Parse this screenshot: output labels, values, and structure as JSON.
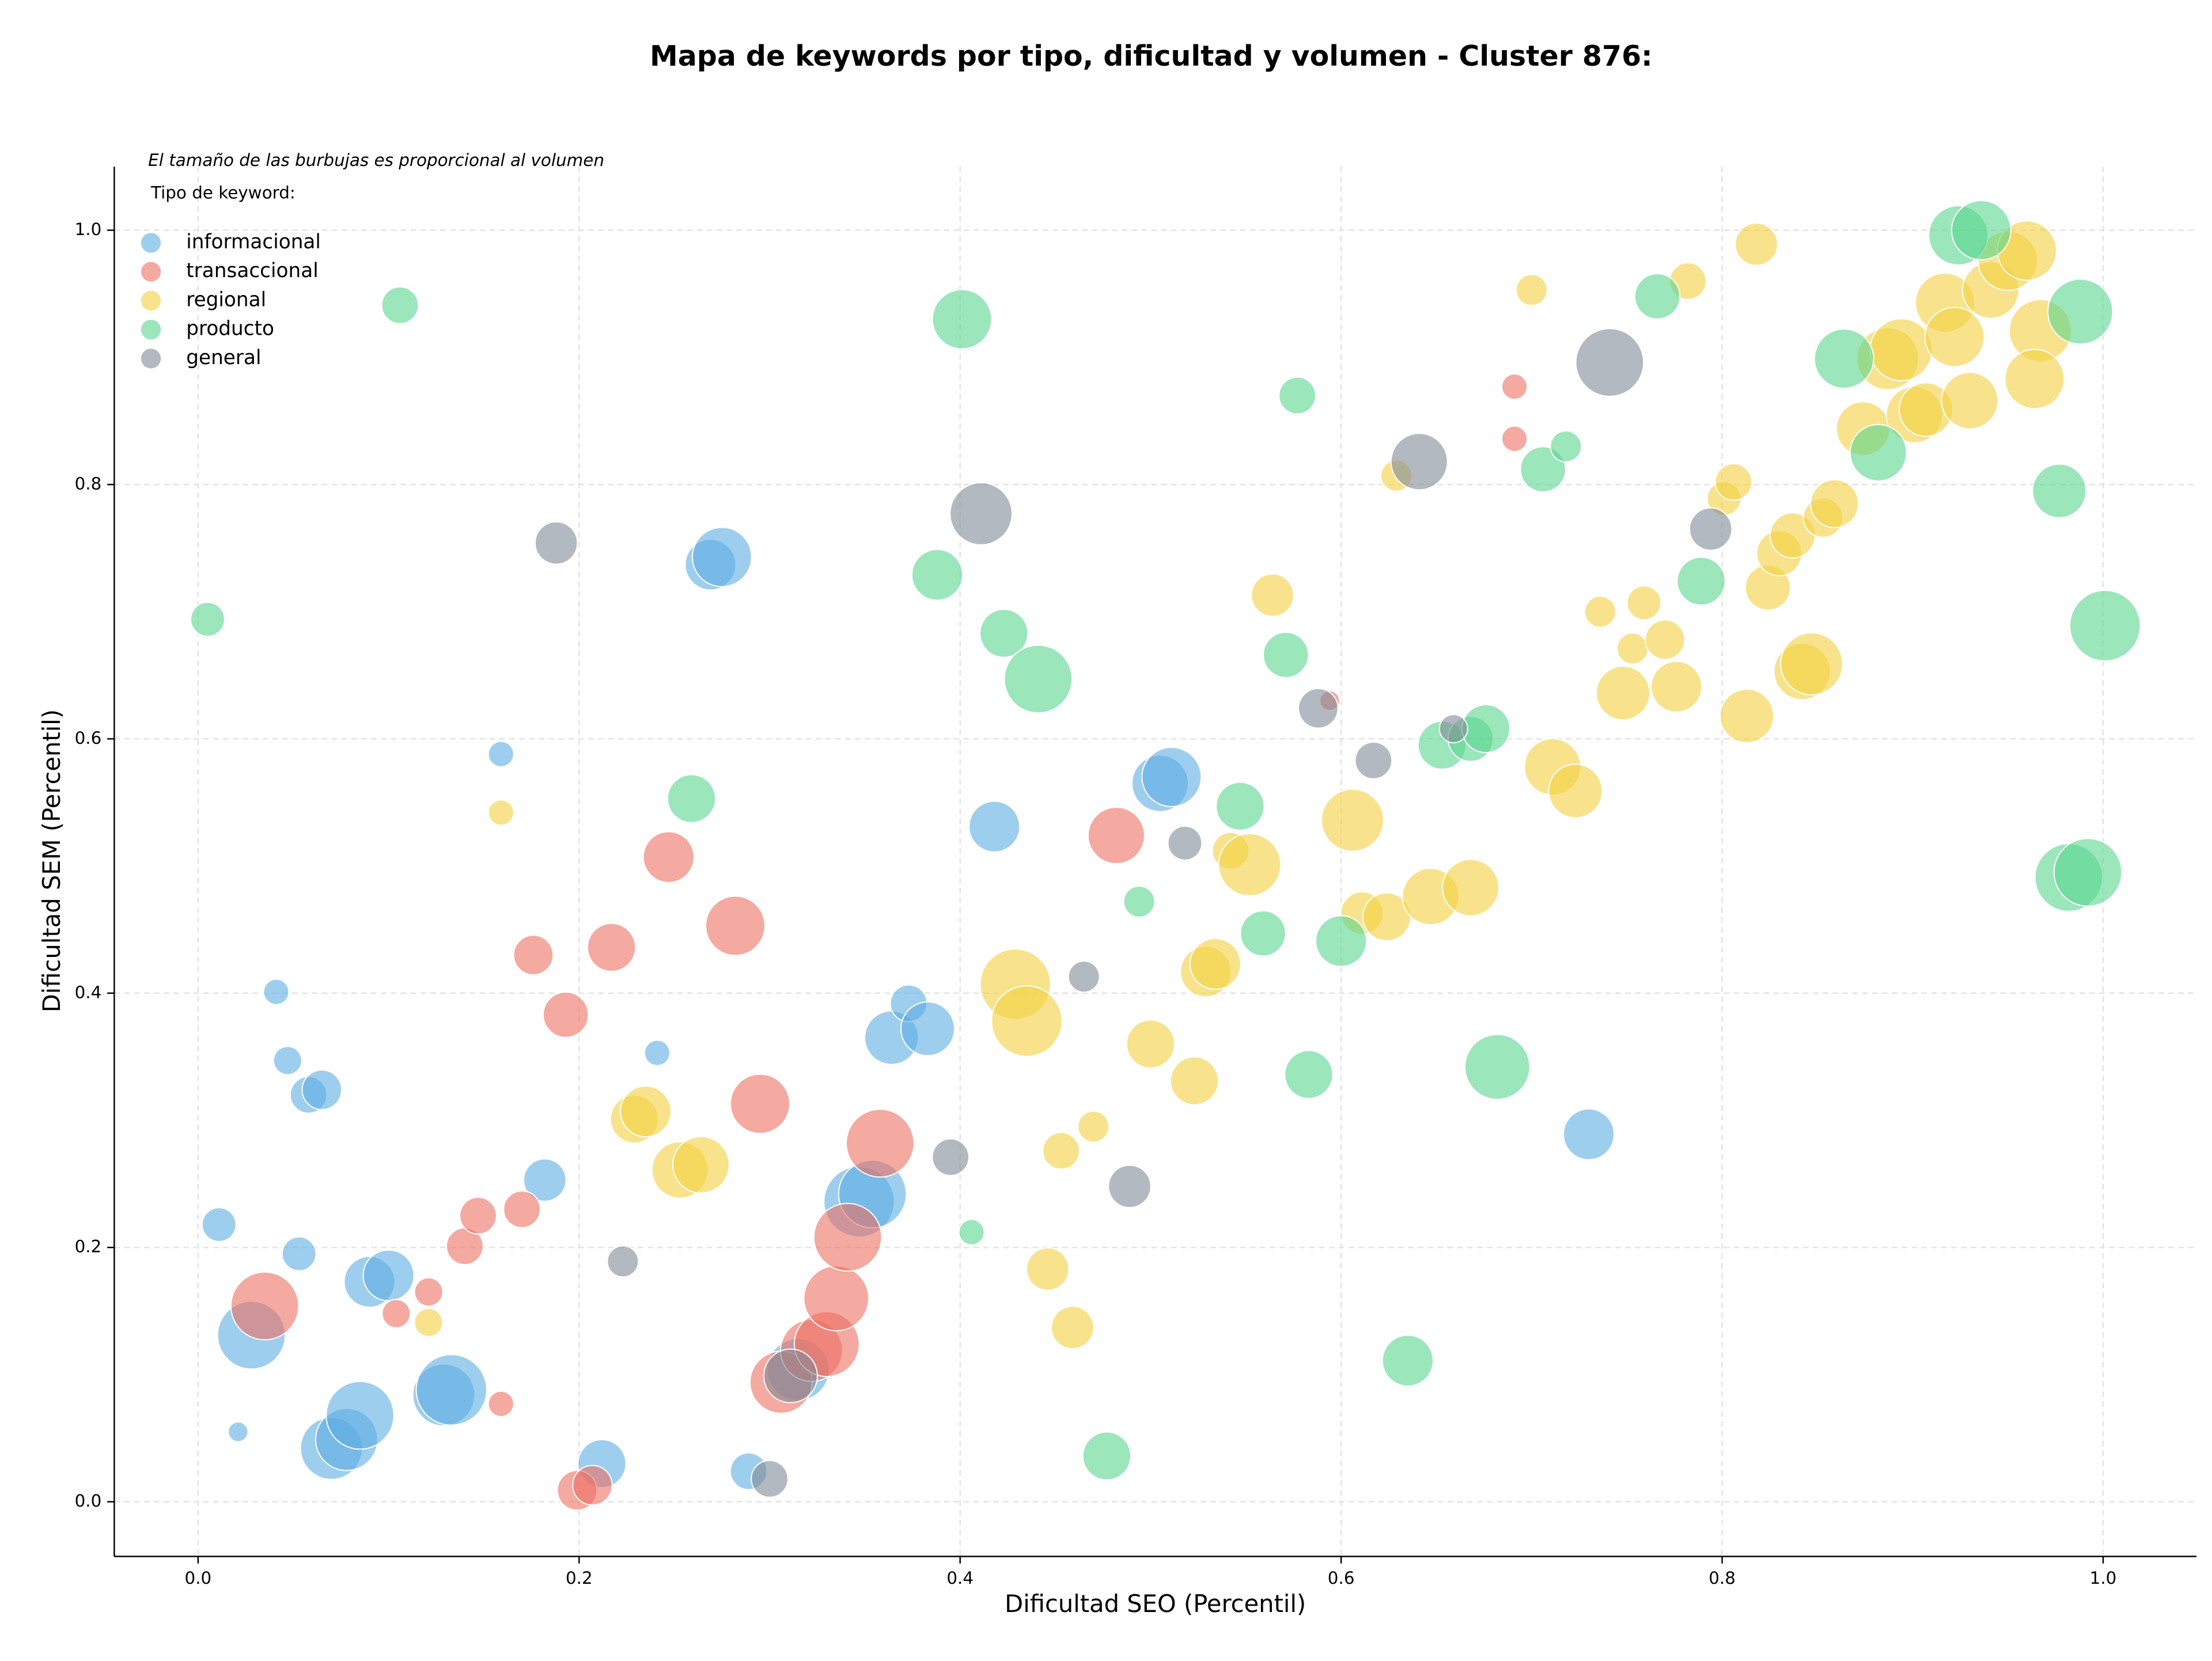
{
  "chart_data": {
    "type": "bubble",
    "title": "Mapa de keywords por tipo, dificultad y volumen - Cluster 876:",
    "annotation": "El tamaño de las burbujas es proporcional al volumen",
    "legend_title": "Tipo de keyword:",
    "xlabel": "Dificultad SEO (Percentil)",
    "ylabel": "Dificultad SEM (Percentil)",
    "xlim": [
      -0.044,
      1.049
    ],
    "ylim": [
      -0.043,
      1.05
    ],
    "xticks": [
      {
        "value": 0,
        "label": "0.0"
      },
      0.2,
      0.4,
      0.6,
      0.8,
      {
        "value": 1,
        "label": "1.0"
      }
    ],
    "yticks": [
      {
        "value": 0,
        "label": "0.0"
      },
      0.2,
      0.4,
      0.6,
      0.8,
      {
        "value": 1,
        "label": "1.0"
      }
    ],
    "grid": true,
    "legend": "upper left",
    "series": [
      {
        "name": "informacional",
        "color": "#5dade2",
        "x": [
          0.011,
          0.028,
          0.021,
          0.041,
          0.047,
          0.053,
          0.058,
          0.065,
          0.07,
          0.078,
          0.085,
          0.09,
          0.1,
          0.129,
          0.133,
          0.159,
          0.182,
          0.212,
          0.241,
          0.269,
          0.275,
          0.289,
          0.315,
          0.347,
          0.354,
          0.364,
          0.373,
          0.383,
          0.418,
          0.505,
          0.511,
          0.73
        ],
        "values": [
          0.218,
          0.131,
          0.055,
          0.401,
          0.347,
          0.195,
          0.32,
          0.324,
          0.042,
          0.049,
          0.068,
          0.173,
          0.178,
          0.084,
          0.088,
          0.588,
          0.253,
          0.03,
          0.353,
          0.737,
          0.743,
          0.024,
          0.104,
          0.236,
          0.242,
          0.365,
          0.392,
          0.372,
          0.531,
          0.565,
          0.57,
          0.289
        ],
        "sizes": [
          144,
          576,
          49,
          81,
          100,
          144,
          169,
          196,
          484,
          484,
          576,
          324,
          324,
          484,
          625,
          81,
          225,
          289,
          81,
          324,
          441,
          169,
          484,
          625,
          576,
          361,
          169,
          361,
          324,
          400,
          441,
          324
        ]
      },
      {
        "name": "transaccional",
        "color": "#ec7063",
        "x": [
          0.035,
          0.104,
          0.121,
          0.14,
          0.147,
          0.159,
          0.17,
          0.176,
          0.193,
          0.199,
          0.207,
          0.217,
          0.247,
          0.282,
          0.295,
          0.306,
          0.322,
          0.33,
          0.335,
          0.341,
          0.358,
          0.482,
          0.594,
          0.691,
          0.691
        ],
        "values": [
          0.154,
          0.148,
          0.165,
          0.201,
          0.225,
          0.077,
          0.23,
          0.43,
          0.383,
          0.009,
          0.013,
          0.436,
          0.507,
          0.453,
          0.313,
          0.094,
          0.119,
          0.124,
          0.16,
          0.208,
          0.282,
          0.524,
          0.63,
          0.877,
          0.836
        ],
        "sizes": [
          576,
          100,
          100,
          169,
          169,
          81,
          169,
          196,
          256,
          196,
          196,
          289,
          324,
          441,
          441,
          484,
          484,
          529,
          529,
          576,
          576,
          400,
          49,
          81,
          81
        ]
      },
      {
        "name": "regional",
        "color": "#f4d03f",
        "x": [
          0.159,
          0.121,
          0.229,
          0.235,
          0.253,
          0.264,
          0.429,
          0.435,
          0.446,
          0.453,
          0.459,
          0.47,
          0.5,
          0.523,
          0.529,
          0.534,
          0.542,
          0.552,
          0.564,
          0.606,
          0.611,
          0.624,
          0.629,
          0.647,
          0.668,
          0.7,
          0.711,
          0.723,
          0.736,
          0.748,
          0.753,
          0.759,
          0.77,
          0.776,
          0.782,
          0.801,
          0.806,
          0.813,
          0.818,
          0.824,
          0.83,
          0.837,
          0.842,
          0.847,
          0.853,
          0.859,
          0.874,
          0.887,
          0.894,
          0.901,
          0.907,
          0.917,
          0.922,
          0.93,
          0.941,
          0.95,
          0.96,
          0.967,
          0.964
        ],
        "values": [
          0.542,
          0.141,
          0.301,
          0.307,
          0.261,
          0.265,
          0.407,
          0.378,
          0.183,
          0.276,
          0.137,
          0.295,
          0.36,
          0.331,
          0.417,
          0.423,
          0.512,
          0.501,
          0.713,
          0.536,
          0.463,
          0.46,
          0.807,
          0.476,
          0.483,
          0.953,
          0.578,
          0.559,
          0.7,
          0.636,
          0.671,
          0.707,
          0.678,
          0.641,
          0.96,
          0.789,
          0.802,
          0.618,
          0.989,
          0.719,
          0.746,
          0.76,
          0.653,
          0.659,
          0.774,
          0.785,
          0.844,
          0.899,
          0.906,
          0.855,
          0.859,
          0.943,
          0.916,
          0.866,
          0.953,
          0.976,
          0.984,
          0.921,
          0.883
        ],
        "sizes": [
          81,
          100,
          289,
          324,
          400,
          400,
          625,
          625,
          225,
          169,
          225,
          121,
          289,
          289,
          324,
          324,
          169,
          484,
          225,
          484,
          225,
          289,
          121,
          400,
          400,
          121,
          400,
          361,
          121,
          361,
          121,
          144,
          196,
          324,
          169,
          144,
          169,
          361,
          225,
          256,
          256,
          256,
          400,
          484,
          196,
          289,
          361,
          484,
          484,
          400,
          361,
          441,
          441,
          400,
          400,
          441,
          441,
          484,
          441
        ]
      },
      {
        "name": "producto",
        "color": "#58d68d",
        "x": [
          0.005,
          0.106,
          0.259,
          0.388,
          0.401,
          0.406,
          0.423,
          0.441,
          0.477,
          0.494,
          0.547,
          0.559,
          0.571,
          0.577,
          0.583,
          0.6,
          0.635,
          0.653,
          0.668,
          0.676,
          0.682,
          0.706,
          0.718,
          0.766,
          0.789,
          0.864,
          0.882,
          0.924,
          0.936,
          0.977,
          0.982,
          0.992,
          0.988,
          1.001
        ],
        "values": [
          0.694,
          0.941,
          0.553,
          0.729,
          0.93,
          0.212,
          0.683,
          0.647,
          0.036,
          0.472,
          0.547,
          0.447,
          0.666,
          0.87,
          0.336,
          0.441,
          0.111,
          0.595,
          0.6,
          0.608,
          0.342,
          0.812,
          0.83,
          0.948,
          0.724,
          0.899,
          0.825,
          0.996,
          1.0,
          0.795,
          0.491,
          0.495,
          0.936,
          0.689
        ],
        "sizes": [
          144,
          169,
          289,
          324,
          441,
          81,
          289,
          576,
          289,
          121,
          289,
          256,
          256,
          169,
          289,
          324,
          324,
          289,
          256,
          289,
          529,
          256,
          121,
          256,
          289,
          441,
          400,
          441,
          441,
          361,
          576,
          576,
          529,
          625
        ]
      },
      {
        "name": "general",
        "color": "#808b96",
        "x": [
          0.188,
          0.223,
          0.3,
          0.311,
          0.395,
          0.411,
          0.465,
          0.489,
          0.518,
          0.588,
          0.617,
          0.641,
          0.659,
          0.741,
          0.794
        ],
        "values": [
          0.754,
          0.189,
          0.018,
          0.099,
          0.271,
          0.777,
          0.413,
          0.248,
          0.518,
          0.624,
          0.583,
          0.818,
          0.608,
          0.896,
          0.765
        ],
        "sizes": [
          225,
          121,
          169,
          361,
          169,
          484,
          121,
          225,
          144,
          196,
          169,
          400,
          100,
          576,
          225
        ]
      }
    ]
  }
}
